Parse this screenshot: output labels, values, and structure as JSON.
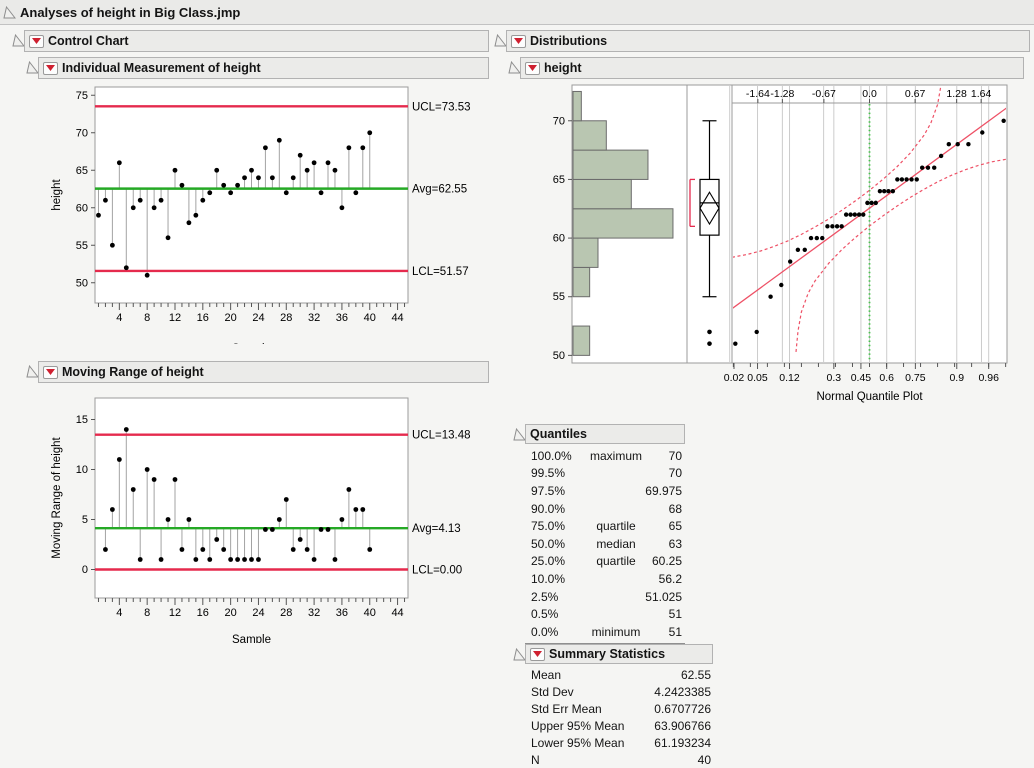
{
  "window_title": "Analyses of height in Big Class.jmp",
  "colors": {
    "limit_red": "#e52a4d",
    "fit_red": "#ee5166",
    "avg_green": "#25a925",
    "ci_green": "#46c24b",
    "hist_fill": "#b9c6b1",
    "hist_stroke": "#6b6b6b",
    "needle_gray": "#a3a3a3",
    "frame": "#9b9b9b",
    "grid": "#cccccc",
    "point_black": "#000000"
  },
  "sections": {
    "control_chart": {
      "label": "Control Chart"
    },
    "individual": {
      "label": "Individual Measurement of height"
    },
    "moving_range": {
      "label": "Moving Range of height"
    },
    "distributions": {
      "label": "Distributions"
    },
    "height_dist": {
      "label": "height"
    },
    "quantiles": {
      "label": "Quantiles"
    },
    "summary": {
      "label": "Summary Statistics"
    }
  },
  "chart_data": [
    {
      "id": "individual",
      "type": "line",
      "title": "Individual Measurement of height",
      "xlabel": "Sample",
      "ylabel": "height",
      "x_start": 1,
      "values": [
        59,
        61,
        55,
        66,
        52,
        60,
        61,
        51,
        60,
        61,
        56,
        65,
        63,
        58,
        59,
        61,
        62,
        65,
        63,
        62,
        63,
        64,
        65,
        64,
        68,
        64,
        69,
        62,
        64,
        67,
        65,
        66,
        62,
        66,
        65,
        60,
        68,
        62,
        68,
        70
      ],
      "ucl": {
        "label": "UCL=73.53",
        "value": 73.53
      },
      "avg": {
        "label": "Avg=62.55",
        "value": 62.55
      },
      "lcl": {
        "label": "LCL=51.57",
        "value": 51.57
      },
      "xlim": [
        0.5,
        45.5
      ],
      "ylim": [
        47.3,
        76.1
      ],
      "yticks": [
        50,
        55,
        60,
        65,
        70,
        75
      ],
      "xticks": [
        4,
        8,
        12,
        16,
        20,
        24,
        28,
        32,
        36,
        40,
        44
      ],
      "grid": false,
      "legend": "none"
    },
    {
      "id": "moving_range",
      "type": "line",
      "title": "Moving Range of height",
      "xlabel": "Sample",
      "ylabel": "Moving Range of height",
      "x_start": 2,
      "values": [
        2,
        6,
        11,
        14,
        8,
        1,
        10,
        9,
        1,
        5,
        9,
        2,
        5,
        1,
        2,
        1,
        3,
        2,
        1,
        1,
        1,
        1,
        1,
        4,
        4,
        5,
        7,
        2,
        3,
        2,
        1,
        4,
        4,
        1,
        5,
        8,
        6,
        6,
        2
      ],
      "ucl": {
        "label": "UCL=13.48",
        "value": 13.48
      },
      "avg": {
        "label": "Avg=4.13",
        "value": 4.13
      },
      "lcl": {
        "label": "LCL=0.00",
        "value": 0.0
      },
      "xlim": [
        0.5,
        45.5
      ],
      "ylim": [
        -2.85,
        17.15
      ],
      "yticks": [
        0,
        5,
        10,
        15
      ],
      "xticks": [
        4,
        8,
        12,
        16,
        20,
        24,
        28,
        32,
        36,
        40,
        44
      ],
      "grid": false,
      "legend": "none"
    },
    {
      "id": "distribution",
      "type": "histogram-box-qq",
      "title": "height",
      "caption": "Normal Quantile Plot",
      "ylim": [
        49.35,
        73.05
      ],
      "yticks": [
        50,
        55,
        60,
        65,
        70
      ],
      "histogram": {
        "bin_start": 50,
        "bin_width": 2.5,
        "counts": [
          2,
          0,
          2,
          3,
          12,
          7,
          9,
          4,
          1
        ]
      },
      "box": {
        "whisker_low": 55,
        "q1": 60.25,
        "median": 63,
        "q3": 65,
        "whisker_high": 70,
        "mean": 62.55,
        "ci_lower": 61.193234,
        "ci_upper": 63.906766,
        "outliers": [
          52,
          51
        ],
        "shortest_half": [
          61,
          65
        ]
      },
      "qq": {
        "xlim": [
          -2.02,
          2.02
        ],
        "mean": 62.55,
        "sd": 4.2423385,
        "top_ticks": [
          {
            "label": "-1.64",
            "z": -1.64
          },
          {
            "label": "-1.28",
            "z": -1.28
          },
          {
            "label": "-0.67",
            "z": -0.67
          },
          {
            "label": "0.0",
            "z": 0.0
          },
          {
            "label": "0.67",
            "z": 0.67
          },
          {
            "label": "1.28",
            "z": 1.28
          },
          {
            "label": "1.64",
            "z": 1.64
          }
        ],
        "prob_ticks": [
          {
            "label": "0.02",
            "z": -2.054
          },
          {
            "label": "0.05",
            "z": -1.645
          },
          {
            "label": "0.12",
            "z": -1.175
          },
          {
            "label": "0.3",
            "z": -0.524
          },
          {
            "label": "0.45",
            "z": -0.126
          },
          {
            "label": "0.6",
            "z": 0.253
          },
          {
            "label": "0.75",
            "z": 0.674
          },
          {
            "label": "0.9",
            "z": 1.282
          },
          {
            "label": "0.96",
            "z": 1.751
          }
        ],
        "gridline_z": [
          -2.054,
          -1.645,
          -1.28,
          -1.175,
          -0.674,
          -0.524,
          -0.126,
          0,
          0.253,
          0.674,
          1.282,
          1.645,
          1.751
        ],
        "points_z": [
          -1.971,
          -1.657,
          -1.453,
          -1.296,
          -1.165,
          -1.052,
          -0.951,
          -0.859,
          -0.774,
          -0.694,
          -0.618,
          -0.545,
          -0.476,
          -0.409,
          -0.343,
          -0.278,
          -0.216,
          -0.153,
          -0.092,
          -0.031,
          0.031,
          0.092,
          0.153,
          0.216,
          0.278,
          0.343,
          0.409,
          0.476,
          0.545,
          0.618,
          0.694,
          0.774,
          0.859,
          0.951,
          1.052,
          1.165,
          1.296,
          1.453,
          1.657,
          1.971
        ],
        "points_y": [
          51,
          52,
          55,
          56,
          58,
          59,
          59,
          60,
          60,
          60,
          61,
          61,
          61,
          61,
          62,
          62,
          62,
          62,
          62,
          63,
          63,
          63,
          64,
          64,
          64,
          64,
          65,
          65,
          65,
          65,
          65,
          66,
          66,
          66,
          67,
          68,
          68,
          68,
          69,
          70
        ],
        "upper_bound": [
          [
            -2.02,
            58.36
          ],
          [
            -1.8,
            58.6
          ],
          [
            -1.6,
            58.9
          ],
          [
            -1.4,
            59.29
          ],
          [
            -1.2,
            59.76
          ],
          [
            -1.0,
            60.31
          ],
          [
            -0.8,
            60.94
          ],
          [
            -0.6,
            61.63
          ],
          [
            -0.4,
            62.39
          ],
          [
            -0.2,
            63.2
          ],
          [
            0,
            64.07
          ],
          [
            0.2,
            65.02
          ],
          [
            0.4,
            66.05
          ],
          [
            0.6,
            67.25
          ],
          [
            0.8,
            68.76
          ],
          [
            0.9,
            69.79
          ],
          [
            1.0,
            71.39
          ],
          [
            1.05,
            73.03
          ],
          [
            1.08,
            74.8
          ]
        ],
        "lower_bound": [
          [
            -1.08,
            50.3
          ],
          [
            -1.05,
            52.07
          ],
          [
            -1.0,
            53.71
          ],
          [
            -0.9,
            55.31
          ],
          [
            -0.8,
            56.34
          ],
          [
            -0.6,
            57.85
          ],
          [
            -0.4,
            59.05
          ],
          [
            -0.2,
            60.08
          ],
          [
            0,
            61.03
          ],
          [
            0.2,
            61.9
          ],
          [
            0.4,
            62.71
          ],
          [
            0.6,
            63.47
          ],
          [
            0.8,
            64.16
          ],
          [
            1.0,
            64.79
          ],
          [
            1.2,
            65.34
          ],
          [
            1.4,
            65.81
          ],
          [
            1.6,
            66.2
          ],
          [
            1.8,
            66.5
          ],
          [
            2.02,
            66.73
          ]
        ]
      }
    }
  ],
  "quantiles_table": {
    "rows": [
      {
        "pct": "100.0%",
        "name": "maximum",
        "value": "70"
      },
      {
        "pct": "99.5%",
        "name": "",
        "value": "70"
      },
      {
        "pct": "97.5%",
        "name": "",
        "value": "69.975"
      },
      {
        "pct": "90.0%",
        "name": "",
        "value": "68"
      },
      {
        "pct": "75.0%",
        "name": "quartile",
        "value": "65"
      },
      {
        "pct": "50.0%",
        "name": "median",
        "value": "63"
      },
      {
        "pct": "25.0%",
        "name": "quartile",
        "value": "60.25"
      },
      {
        "pct": "10.0%",
        "name": "",
        "value": "56.2"
      },
      {
        "pct": "2.5%",
        "name": "",
        "value": "51.025"
      },
      {
        "pct": "0.5%",
        "name": "",
        "value": "51"
      },
      {
        "pct": "0.0%",
        "name": "minimum",
        "value": "51"
      }
    ]
  },
  "summary_table": {
    "rows": [
      {
        "label": "Mean",
        "value": "62.55"
      },
      {
        "label": "Std Dev",
        "value": "4.2423385"
      },
      {
        "label": "Std Err Mean",
        "value": "0.6707726"
      },
      {
        "label": "Upper 95% Mean",
        "value": "63.906766"
      },
      {
        "label": "Lower 95% Mean",
        "value": "61.193234"
      },
      {
        "label": "N",
        "value": "40"
      }
    ]
  }
}
